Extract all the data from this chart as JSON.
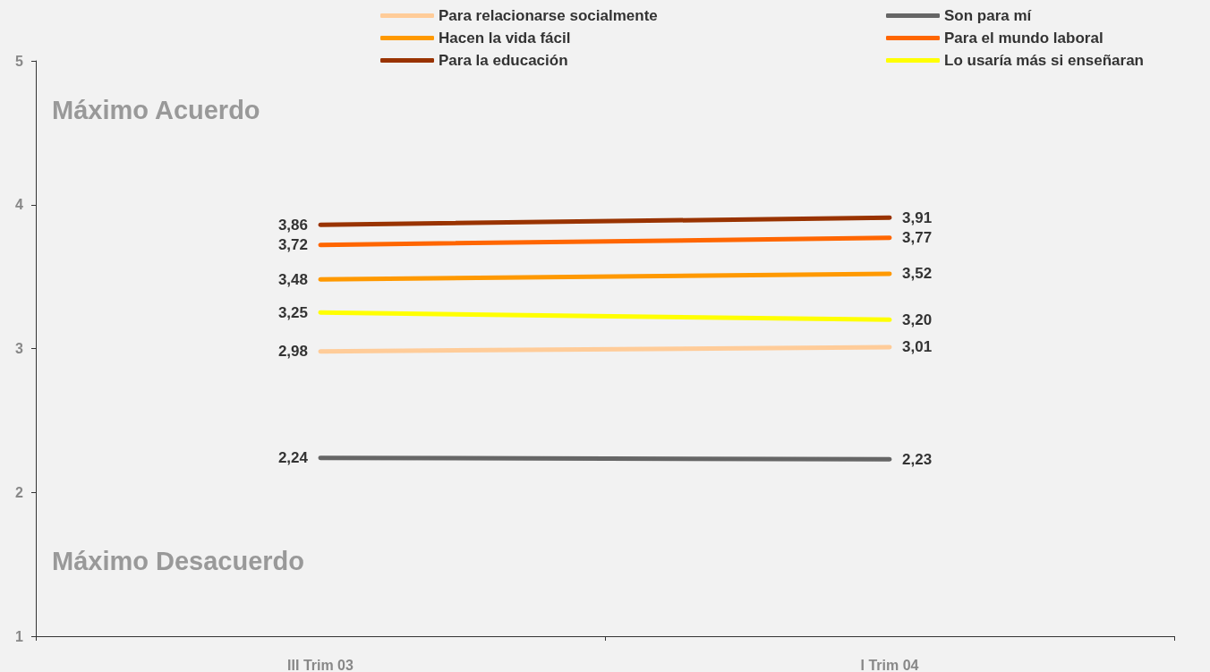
{
  "chart_data": {
    "type": "line",
    "categories": [
      "III Trim 03",
      "I Trim 04"
    ],
    "series": [
      {
        "name": "Para relacionarse socialmente",
        "color": "#ffcc99",
        "values": [
          2.98,
          3.01
        ],
        "value_labels": [
          "2,98",
          "3,01"
        ]
      },
      {
        "name": "Son para mí",
        "color": "#666666",
        "values": [
          2.24,
          2.23
        ],
        "value_labels": [
          "2,24",
          "2,23"
        ]
      },
      {
        "name": "Hacen la vida fácil",
        "color": "#ff9900",
        "values": [
          3.48,
          3.52
        ],
        "value_labels": [
          "3,48",
          "3,52"
        ]
      },
      {
        "name": "Para el mundo laboral",
        "color": "#ff6600",
        "values": [
          3.72,
          3.77
        ],
        "value_labels": [
          "3,72",
          "3,77"
        ]
      },
      {
        "name": "Para la educación",
        "color": "#993300",
        "values": [
          3.86,
          3.91
        ],
        "value_labels": [
          "3,86",
          "3,91"
        ]
      },
      {
        "name": "Lo usaría más si enseñaran",
        "color": "#ffff00",
        "values": [
          3.25,
          3.2
        ],
        "value_labels": [
          "3,25",
          "3,20"
        ]
      }
    ],
    "ylim": [
      1,
      5
    ],
    "yticks": [
      1,
      2,
      3,
      4,
      5
    ],
    "annotations": [
      "Máximo Acuerdo",
      "Máximo Desacuerdo"
    ],
    "legend": "top",
    "grid": false,
    "marker": "none",
    "line_style": "solid"
  }
}
